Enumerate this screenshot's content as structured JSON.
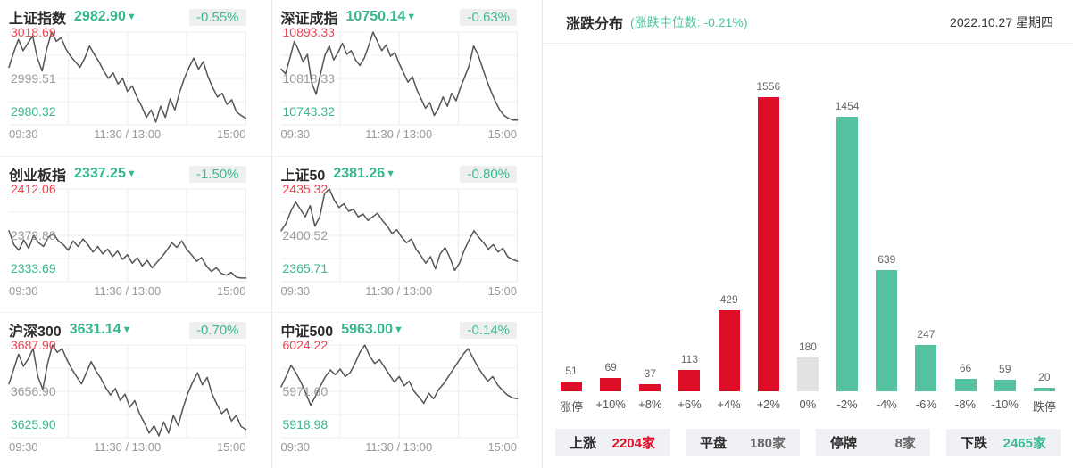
{
  "colors": {
    "up_red": "#df0e28",
    "down_green": "#54c1a0",
    "flat_gray": "#e2e2e2",
    "value_green": "#35b78f",
    "high_label_red": "#f04352",
    "mid_label_gray": "#9b9b9b"
  },
  "chart_data": [
    {
      "id": "distribution",
      "type": "bar",
      "title": "涨跌分布",
      "subtitle": "(涨跌中位数: -0.21%)",
      "date_label": "2022.10.27 星期四",
      "categories": [
        "涨停",
        "+10%",
        "+8%",
        "+6%",
        "+4%",
        "+2%",
        "0%",
        "-2%",
        "-4%",
        "-6%",
        "-8%",
        "-10%",
        "跌停"
      ],
      "values": [
        51,
        69,
        37,
        113,
        429,
        1556,
        180,
        1454,
        639,
        247,
        66,
        59,
        20
      ],
      "bar_colors": [
        "up_red",
        "up_red",
        "up_red",
        "up_red",
        "up_red",
        "up_red",
        "flat_gray",
        "down_green",
        "down_green",
        "down_green",
        "down_green",
        "down_green",
        "down_green"
      ],
      "ylim": [
        0,
        1700
      ],
      "grid": false,
      "legend": "none",
      "summary": [
        {
          "label": "上涨",
          "value": "2204家"
        },
        {
          "label": "平盘",
          "value": "180家"
        },
        {
          "label": "停牌",
          "value": "8家"
        },
        {
          "label": "下跌",
          "value": "2465家"
        }
      ]
    },
    {
      "id": "sse-composite",
      "type": "line",
      "name": "上证指数",
      "value": "2982.90",
      "arrow": "▼",
      "change": "-0.55%",
      "y_high": "3018.69",
      "y_mid": "2999.51",
      "y_low": "2980.32",
      "x_ticks": [
        "09:30",
        "11:30 / 13:00",
        "15:00"
      ],
      "points_norm": [
        0.62,
        0.78,
        0.92,
        0.8,
        0.88,
        0.96,
        0.72,
        0.58,
        0.82,
        1.0,
        0.9,
        0.94,
        0.82,
        0.74,
        0.68,
        0.62,
        0.72,
        0.85,
        0.76,
        0.68,
        0.58,
        0.5,
        0.56,
        0.44,
        0.5,
        0.36,
        0.42,
        0.3,
        0.2,
        0.08,
        0.16,
        0.03,
        0.2,
        0.08,
        0.28,
        0.16,
        0.35,
        0.5,
        0.62,
        0.72,
        0.6,
        0.68,
        0.52,
        0.4,
        0.3,
        0.34,
        0.22,
        0.27,
        0.14,
        0.1,
        0.07
      ]
    },
    {
      "id": "szse-component",
      "type": "line",
      "name": "深证成指",
      "value": "10750.14",
      "arrow": "▼",
      "change": "-0.63%",
      "y_high": "10893.33",
      "y_mid": "10818.33",
      "y_low": "10743.32",
      "x_ticks": [
        "09:30",
        "11:30 / 13:00",
        "15:00"
      ],
      "points_norm": [
        0.6,
        0.55,
        0.72,
        0.9,
        0.8,
        0.68,
        0.76,
        0.45,
        0.33,
        0.55,
        0.75,
        0.85,
        0.7,
        0.78,
        0.88,
        0.76,
        0.8,
        0.7,
        0.64,
        0.72,
        0.85,
        1.0,
        0.9,
        0.8,
        0.86,
        0.74,
        0.78,
        0.66,
        0.56,
        0.46,
        0.52,
        0.38,
        0.28,
        0.18,
        0.24,
        0.1,
        0.18,
        0.3,
        0.2,
        0.34,
        0.26,
        0.4,
        0.52,
        0.64,
        0.85,
        0.76,
        0.62,
        0.48,
        0.36,
        0.25,
        0.16,
        0.1,
        0.07,
        0.05,
        0.05
      ]
    },
    {
      "id": "chinext",
      "type": "line",
      "name": "创业板指",
      "value": "2337.25",
      "arrow": "▼",
      "change": "-1.50%",
      "y_high": "2412.06",
      "y_mid": "2372.88",
      "y_low": "2333.69",
      "x_ticks": [
        "09:30",
        "11:30 / 13:00",
        "15:00"
      ],
      "points_norm": [
        0.55,
        0.4,
        0.34,
        0.45,
        0.36,
        0.5,
        0.42,
        0.38,
        0.48,
        0.52,
        0.44,
        0.4,
        0.34,
        0.44,
        0.38,
        0.46,
        0.4,
        0.32,
        0.38,
        0.3,
        0.35,
        0.27,
        0.33,
        0.24,
        0.29,
        0.2,
        0.26,
        0.17,
        0.23,
        0.15,
        0.21,
        0.27,
        0.34,
        0.42,
        0.37,
        0.44,
        0.35,
        0.29,
        0.22,
        0.26,
        0.17,
        0.11,
        0.15,
        0.09,
        0.07,
        0.1,
        0.05,
        0.04,
        0.04
      ]
    },
    {
      "id": "sse-50",
      "type": "line",
      "name": "上证50",
      "value": "2381.26",
      "arrow": "▼",
      "change": "-0.80%",
      "y_high": "2435.32",
      "y_mid": "2400.52",
      "y_low": "2365.71",
      "x_ticks": [
        "09:30",
        "11:30 / 13:00",
        "15:00"
      ],
      "points_norm": [
        0.55,
        0.63,
        0.76,
        0.86,
        0.78,
        0.7,
        0.82,
        0.6,
        0.7,
        0.95,
        1.0,
        0.88,
        0.8,
        0.84,
        0.76,
        0.78,
        0.7,
        0.73,
        0.66,
        0.7,
        0.74,
        0.66,
        0.6,
        0.52,
        0.56,
        0.48,
        0.42,
        0.46,
        0.35,
        0.28,
        0.2,
        0.27,
        0.14,
        0.3,
        0.37,
        0.26,
        0.12,
        0.2,
        0.34,
        0.45,
        0.55,
        0.48,
        0.42,
        0.35,
        0.4,
        0.32,
        0.36,
        0.27,
        0.24,
        0.22
      ]
    },
    {
      "id": "csi-300",
      "type": "line",
      "name": "沪深300",
      "value": "3631.14",
      "arrow": "▼",
      "change": "-0.70%",
      "y_high": "3687.90",
      "y_mid": "3656.90",
      "y_low": "3625.90",
      "x_ticks": [
        "09:30",
        "11:30 / 13:00",
        "15:00"
      ],
      "points_norm": [
        0.58,
        0.74,
        0.9,
        0.77,
        0.85,
        0.96,
        0.66,
        0.52,
        0.8,
        1.0,
        0.92,
        0.96,
        0.84,
        0.74,
        0.66,
        0.58,
        0.7,
        0.82,
        0.72,
        0.64,
        0.54,
        0.46,
        0.53,
        0.4,
        0.47,
        0.33,
        0.4,
        0.26,
        0.16,
        0.05,
        0.13,
        0.02,
        0.17,
        0.05,
        0.24,
        0.13,
        0.32,
        0.48,
        0.6,
        0.7,
        0.57,
        0.65,
        0.47,
        0.36,
        0.26,
        0.31,
        0.18,
        0.24,
        0.12,
        0.09
      ]
    },
    {
      "id": "csi-500",
      "type": "line",
      "name": "中证500",
      "value": "5963.00",
      "arrow": "▼",
      "change": "-0.14%",
      "y_high": "6024.22",
      "y_mid": "5971.60",
      "y_low": "5918.98",
      "x_ticks": [
        "09:30",
        "11:30 / 13:00",
        "15:00"
      ],
      "points_norm": [
        0.55,
        0.66,
        0.78,
        0.7,
        0.6,
        0.48,
        0.35,
        0.45,
        0.56,
        0.66,
        0.73,
        0.68,
        0.74,
        0.66,
        0.7,
        0.8,
        0.92,
        1.0,
        0.88,
        0.8,
        0.84,
        0.76,
        0.68,
        0.6,
        0.66,
        0.56,
        0.61,
        0.5,
        0.44,
        0.37,
        0.48,
        0.42,
        0.52,
        0.58,
        0.66,
        0.74,
        0.82,
        0.9,
        0.96,
        0.86,
        0.76,
        0.68,
        0.61,
        0.66,
        0.57,
        0.51,
        0.46,
        0.43,
        0.42
      ]
    }
  ]
}
